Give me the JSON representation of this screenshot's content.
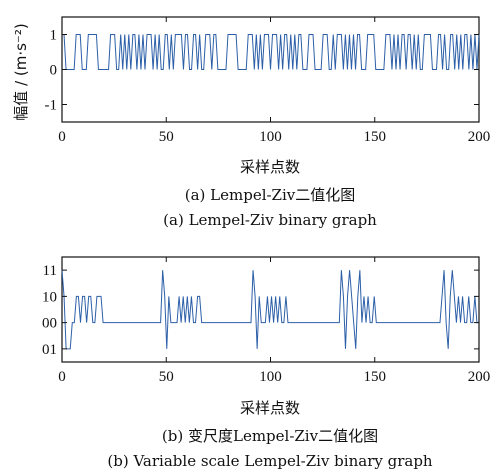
{
  "figure": {
    "caption_a_cn": "(a) Lempel-Ziv二值化图",
    "caption_a_en": "(a) Lempel-Ziv binary graph",
    "caption_b_cn": "(b) 变尺度Lempel-Ziv二值化图",
    "caption_b_en": "(b) Variable scale Lempel-Ziv binary graph"
  },
  "colors": {
    "line": "#2c5fa8",
    "axis": "#111111"
  },
  "chart_data": [
    {
      "type": "line",
      "title": "",
      "xlabel": "采样点数",
      "ylabel": "幅值 / (m·s⁻²)",
      "xlim": [
        0,
        200
      ],
      "ylim": [
        -1.5,
        1.5
      ],
      "xticks": [
        "0",
        "50",
        "100",
        "150",
        "200"
      ],
      "yticks": [
        "-1",
        "0",
        "1"
      ],
      "grid": false,
      "series": [
        {
          "values": [
            1,
            1,
            0,
            0,
            0,
            0,
            0,
            1,
            1,
            1,
            0,
            0,
            0,
            1,
            1,
            1,
            1,
            1,
            0,
            0,
            0,
            0,
            0,
            0,
            1,
            1,
            1,
            0,
            0,
            1,
            0,
            1,
            0,
            1,
            0,
            1,
            1,
            0,
            1,
            0,
            1,
            0,
            1,
            1,
            1,
            0,
            1,
            0,
            1,
            0,
            0,
            1,
            1,
            0,
            1,
            0,
            1,
            1,
            1,
            1,
            0,
            1,
            1,
            0,
            0,
            1,
            1,
            0,
            1,
            0,
            0,
            1,
            1,
            1,
            0,
            1,
            1,
            0,
            0,
            0,
            0,
            0,
            1,
            1,
            1,
            1,
            1,
            0,
            0,
            0,
            0,
            0,
            1,
            1,
            1,
            0,
            1,
            0,
            1,
            0,
            1,
            1,
            1,
            0,
            1,
            1,
            1,
            0,
            1,
            0,
            1,
            1,
            0,
            1,
            0,
            1,
            0,
            1,
            1,
            0,
            0,
            0,
            1,
            1,
            1,
            0,
            0,
            0,
            0,
            1,
            1,
            1,
            0,
            0,
            1,
            0,
            1,
            1,
            1,
            0,
            1,
            0,
            1,
            0,
            1,
            0,
            1,
            1,
            0,
            0,
            0,
            1,
            1,
            1,
            1,
            0,
            0,
            0,
            0,
            0,
            1,
            1,
            1,
            0,
            1,
            0,
            1,
            0,
            1,
            1,
            0,
            1,
            1,
            0,
            1,
            0,
            1,
            0,
            0,
            1,
            1,
            1,
            1,
            0,
            0,
            0,
            1,
            1,
            0,
            1,
            0,
            0,
            1,
            1,
            0,
            1,
            0,
            1,
            0,
            1,
            1,
            0,
            1,
            0,
            1,
            0,
            1
          ]
        }
      ]
    },
    {
      "type": "line",
      "title": "",
      "xlabel": "采样点数",
      "ylabel": "",
      "xlim": [
        0,
        200
      ],
      "ylim": [
        -0.5,
        3.5
      ],
      "xticks": [
        "0",
        "50",
        "100",
        "150",
        "200"
      ],
      "ytick_labels": [
        "01",
        "00",
        "10",
        "11"
      ],
      "ytick_values": [
        0,
        1,
        2,
        3
      ],
      "grid": false,
      "series": [
        {
          "values": [
            3,
            2,
            0,
            0,
            0,
            1,
            1,
            2,
            2,
            1,
            2,
            2,
            1,
            2,
            2,
            1,
            1,
            2,
            2,
            2,
            1,
            1,
            1,
            1,
            1,
            1,
            1,
            1,
            1,
            1,
            1,
            1,
            1,
            1,
            1,
            1,
            1,
            1,
            1,
            1,
            1,
            1,
            1,
            1,
            1,
            1,
            1,
            1,
            1,
            3,
            2,
            0,
            2,
            1,
            1,
            1,
            1,
            2,
            1,
            2,
            1,
            2,
            1,
            2,
            1,
            1,
            2,
            2,
            1,
            1,
            1,
            1,
            1,
            1,
            1,
            1,
            1,
            1,
            1,
            1,
            1,
            1,
            1,
            1,
            1,
            1,
            1,
            1,
            1,
            1,
            1,
            1,
            1,
            3,
            2,
            0,
            2,
            1,
            1,
            1,
            2,
            1,
            2,
            1,
            2,
            1,
            2,
            1,
            1,
            2,
            1,
            1,
            1,
            1,
            1,
            1,
            1,
            1,
            1,
            1,
            1,
            1,
            1,
            1,
            1,
            1,
            1,
            1,
            1,
            1,
            1,
            1,
            1,
            1,
            1,
            1,
            3,
            2,
            0,
            2,
            3,
            2,
            1,
            0,
            2,
            3,
            1,
            2,
            1,
            2,
            1,
            1,
            2,
            1,
            1,
            1,
            1,
            1,
            1,
            1,
            1,
            1,
            1,
            1,
            1,
            1,
            1,
            1,
            1,
            1,
            1,
            1,
            1,
            1,
            1,
            1,
            1,
            1,
            1,
            1,
            1,
            1,
            1,
            1,
            1,
            2,
            3,
            1,
            0,
            2,
            3,
            2,
            1,
            2,
            1,
            2,
            1,
            1,
            2,
            1,
            1,
            2,
            1,
            1
          ]
        }
      ]
    }
  ]
}
